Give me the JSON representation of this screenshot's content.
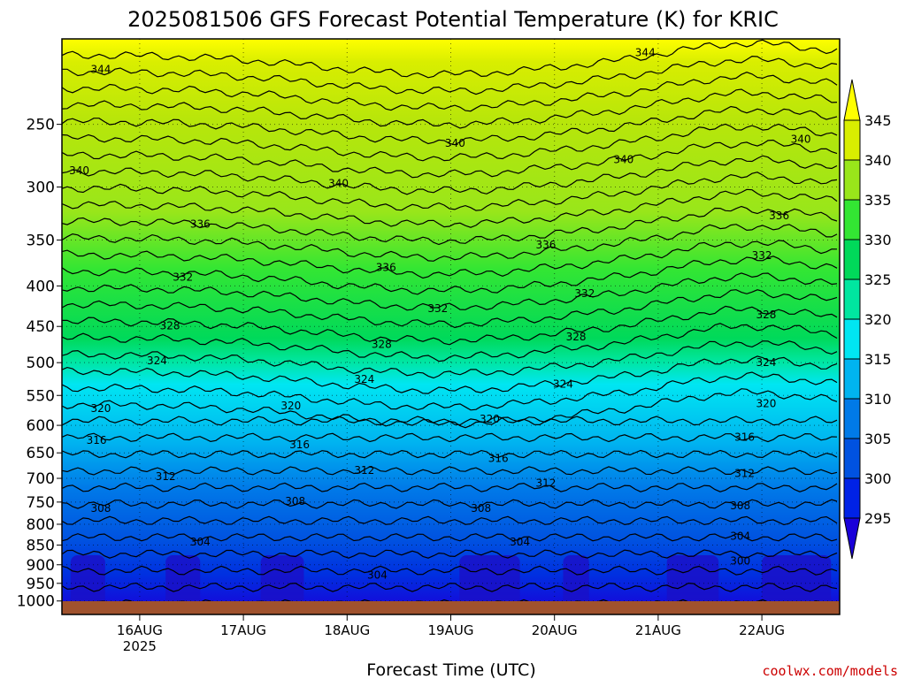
{
  "title": "2025081506 GFS Forecast Potential Temperature (K) for KRIC",
  "credit": "coolwx.com/models",
  "chart_data": {
    "type": "heatmap",
    "title": "2025081506 GFS Forecast Potential Temperature (K) for KRIC",
    "xlabel": "Forecast Time (UTC)",
    "ylabel": "",
    "x_range_hours": [
      -18,
      162
    ],
    "x_ticks": [
      {
        "label": "16AUG",
        "sub": "2025",
        "hour": 0
      },
      {
        "label": "17AUG",
        "sub": "",
        "hour": 24
      },
      {
        "label": "18AUG",
        "sub": "",
        "hour": 48
      },
      {
        "label": "19AUG",
        "sub": "",
        "hour": 72
      },
      {
        "label": "20AUG",
        "sub": "",
        "hour": 96
      },
      {
        "label": "21AUG",
        "sub": "",
        "hour": 120
      },
      {
        "label": "22AUG",
        "sub": "",
        "hour": 144
      }
    ],
    "y_scale": "log",
    "ylim": [
      1040,
      195
    ],
    "y_ticks": [
      250,
      300,
      350,
      400,
      450,
      500,
      550,
      600,
      650,
      700,
      750,
      800,
      850,
      900,
      950,
      1000
    ],
    "grid": true,
    "colorbar": {
      "levels": [
        295,
        300,
        305,
        310,
        315,
        320,
        325,
        330,
        335,
        340,
        345
      ],
      "colors": [
        "#1a00d9",
        "#0022e6",
        "#0052e0",
        "#007ae8",
        "#00b4f0",
        "#00e6f2",
        "#00e6a0",
        "#00d95a",
        "#33e633",
        "#99e61a",
        "#d9ee00",
        "#ffff00"
      ],
      "extend": "both"
    },
    "contour_levels": [
      300,
      304,
      308,
      312,
      316,
      320,
      324,
      328,
      332,
      336,
      340,
      344
    ],
    "labeled_contours": [
      {
        "value": "344",
        "hour": -9,
        "p": 213
      },
      {
        "value": "344",
        "hour": 117,
        "p": 203
      },
      {
        "value": "340",
        "hour": -14,
        "p": 286
      },
      {
        "value": "340",
        "hour": 46,
        "p": 297
      },
      {
        "value": "340",
        "hour": 73,
        "p": 264
      },
      {
        "value": "340",
        "hour": 112,
        "p": 277
      },
      {
        "value": "340",
        "hour": 153,
        "p": 261
      },
      {
        "value": "336",
        "hour": 14,
        "p": 334
      },
      {
        "value": "336",
        "hour": 57,
        "p": 379
      },
      {
        "value": "336",
        "hour": 94,
        "p": 355
      },
      {
        "value": "336",
        "hour": 148,
        "p": 326
      },
      {
        "value": "332",
        "hour": 10,
        "p": 390
      },
      {
        "value": "332",
        "hour": 69,
        "p": 427
      },
      {
        "value": "332",
        "hour": 103,
        "p": 409
      },
      {
        "value": "332",
        "hour": 144,
        "p": 366
      },
      {
        "value": "328",
        "hour": 7,
        "p": 449
      },
      {
        "value": "328",
        "hour": 56,
        "p": 474
      },
      {
        "value": "328",
        "hour": 101,
        "p": 464
      },
      {
        "value": "328",
        "hour": 145,
        "p": 435
      },
      {
        "value": "324",
        "hour": 4,
        "p": 497
      },
      {
        "value": "324",
        "hour": 52,
        "p": 525
      },
      {
        "value": "324",
        "hour": 98,
        "p": 532
      },
      {
        "value": "324",
        "hour": 145,
        "p": 500
      },
      {
        "value": "320",
        "hour": -9,
        "p": 571
      },
      {
        "value": "320",
        "hour": 35,
        "p": 567
      },
      {
        "value": "320",
        "hour": 81,
        "p": 589
      },
      {
        "value": "320",
        "hour": 145,
        "p": 563
      },
      {
        "value": "316",
        "hour": -10,
        "p": 627
      },
      {
        "value": "316",
        "hour": 37,
        "p": 635
      },
      {
        "value": "316",
        "hour": 83,
        "p": 661
      },
      {
        "value": "316",
        "hour": 140,
        "p": 621
      },
      {
        "value": "312",
        "hour": 6,
        "p": 696
      },
      {
        "value": "312",
        "hour": 52,
        "p": 684
      },
      {
        "value": "312",
        "hour": 94,
        "p": 710
      },
      {
        "value": "312",
        "hour": 140,
        "p": 690
      },
      {
        "value": "308",
        "hour": -9,
        "p": 764
      },
      {
        "value": "308",
        "hour": 36,
        "p": 748
      },
      {
        "value": "308",
        "hour": 79,
        "p": 764
      },
      {
        "value": "308",
        "hour": 139,
        "p": 758
      },
      {
        "value": "304",
        "hour": 14,
        "p": 842
      },
      {
        "value": "304",
        "hour": 55,
        "p": 927
      },
      {
        "value": "304",
        "hour": 88,
        "p": 842
      },
      {
        "value": "304",
        "hour": 139,
        "p": 828
      },
      {
        "value": "300",
        "hour": 139,
        "p": 890
      }
    ]
  }
}
